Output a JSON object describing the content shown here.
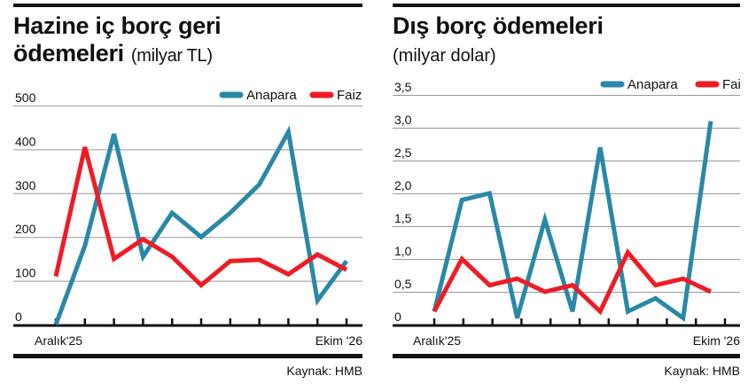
{
  "chart_data": [
    {
      "type": "line",
      "title": "Hazine iç borç geri ödemeleri",
      "unit": "(milyar TL)",
      "ylim": [
        0,
        500
      ],
      "yticks": [
        "0",
        "100",
        "200",
        "300",
        "400",
        "500"
      ],
      "yvals": [
        0,
        100,
        200,
        300,
        400,
        500
      ],
      "x_labels": {
        "first": "Aralık'25",
        "last": "Ekim '26"
      },
      "grid": true,
      "legend": "top-right",
      "source": "Kaynak: HMB",
      "series": [
        {
          "name": "Anapara",
          "color": "#2a88a8",
          "values": [
            0,
            180,
            435,
            155,
            255,
            200,
            255,
            320,
            440,
            55,
            145
          ]
        },
        {
          "name": "Faiz",
          "color": "#ee1c25",
          "values": [
            110,
            405,
            150,
            195,
            155,
            90,
            145,
            148,
            115,
            160,
            125
          ]
        }
      ]
    },
    {
      "type": "line",
      "title": "Dış borç ödemeleri",
      "unit": "(milyar dolar)",
      "ylim": [
        0,
        3.5
      ],
      "yticks": [
        "0",
        "0,5",
        "1,0",
        "1,5",
        "2,0",
        "2,5",
        "3,0",
        "3,5"
      ],
      "yvals": [
        0,
        0.5,
        1,
        1.5,
        2,
        2.5,
        3,
        3.5
      ],
      "x_labels": {
        "first": "Aralık'25",
        "last": "Ekim '26"
      },
      "grid": true,
      "legend": "top-right",
      "source": "Kaynak: HMB",
      "series": [
        {
          "name": "Anapara",
          "color": "#2a88a8",
          "values": [
            0.2,
            1.9,
            2.0,
            0.1,
            1.6,
            0.2,
            2.7,
            0.2,
            0.4,
            0.1,
            3.1
          ]
        },
        {
          "name": "Faiz",
          "color": "#ee1c25",
          "values": [
            0.2,
            1.0,
            0.6,
            0.7,
            0.5,
            0.6,
            0.2,
            1.1,
            0.6,
            0.7,
            0.5
          ]
        }
      ]
    }
  ]
}
